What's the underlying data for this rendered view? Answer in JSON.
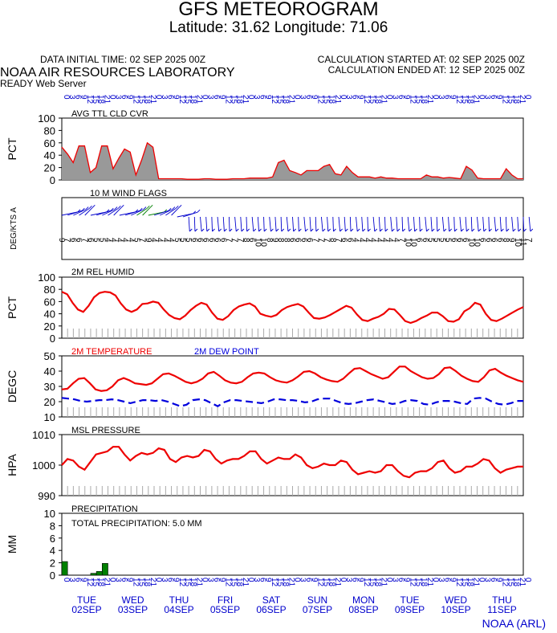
{
  "header": {
    "title": "GFS METEOROGRAM",
    "subtitle": "Latitude: 31.62 Longitude:  71.06",
    "initial_time": "DATA INITIAL TIME: 02 SEP 2025 00Z",
    "calc_started": "CALCULATION STARTED AT: 02 SEP 2025 00Z",
    "calc_ended": "CALCULATION ENDED AT: 12 SEP 2025 00Z",
    "lab": "NOAA AIR RESOURCES LABORATORY",
    "server": "READY Web Server"
  },
  "footer": "NOAA (ARL)",
  "colors": {
    "axis": "#000000",
    "series_red": "#ee0000",
    "dewpoint_blue": "#0000dd",
    "label_blue": "#0000cc",
    "fill_gray": "#999999",
    "precip_green": "#008000",
    "wind_blue": "#0000cc"
  },
  "time_axis": {
    "hours_label_top": "000306091215182124 hour tick labels (3-hourly, 0..240)",
    "hours": [
      "0",
      "3",
      "6",
      "9",
      "12",
      "15",
      "18",
      "21",
      "0",
      "3",
      "6",
      "9",
      "12",
      "15",
      "18",
      "21",
      "0",
      "3",
      "6",
      "9",
      "12",
      "15",
      "18",
      "21",
      "0",
      "3",
      "6",
      "9",
      "12",
      "15",
      "18",
      "21",
      "0",
      "3",
      "6",
      "9",
      "12",
      "15",
      "18",
      "21",
      "0",
      "3",
      "6",
      "9",
      "12",
      "15",
      "18",
      "21",
      "0",
      "3",
      "6",
      "9",
      "12",
      "15",
      "18",
      "21",
      "0",
      "3",
      "6",
      "9",
      "12",
      "15",
      "18",
      "21",
      "0",
      "3",
      "6",
      "9",
      "12",
      "15",
      "18",
      "21",
      "0",
      "3",
      "6",
      "9",
      "12",
      "15",
      "18",
      "21",
      "0"
    ],
    "days": [
      {
        "dow": "TUE",
        "date": "02SEP"
      },
      {
        "dow": "WED",
        "date": "03SEP"
      },
      {
        "dow": "THU",
        "date": "04SEP"
      },
      {
        "dow": "FRI",
        "date": "05SEP"
      },
      {
        "dow": "SAT",
        "date": "06SEP"
      },
      {
        "dow": "SUN",
        "date": "07SEP"
      },
      {
        "dow": "MON",
        "date": "08SEP"
      },
      {
        "dow": "TUE",
        "date": "09SEP"
      },
      {
        "dow": "WED",
        "date": "10SEP"
      },
      {
        "dow": "THU",
        "date": "11SEP"
      }
    ]
  },
  "chart_data": [
    {
      "type": "area",
      "name": "cloud",
      "title": "AVG TTL CLD CVR",
      "ylabel": "PCT",
      "ylim": [
        0,
        100
      ],
      "yticks": [
        "0",
        "20",
        "40",
        "60",
        "80",
        "100"
      ],
      "x_hours_step": 3,
      "values": [
        53,
        42,
        28,
        55,
        55,
        12,
        20,
        55,
        55,
        18,
        35,
        50,
        45,
        8,
        32,
        60,
        53,
        2,
        2,
        2,
        2,
        2,
        1,
        1,
        1,
        2,
        2,
        1,
        1,
        1,
        2,
        2,
        2,
        3,
        3,
        3,
        3,
        5,
        28,
        32,
        15,
        12,
        8,
        15,
        15,
        15,
        22,
        25,
        10,
        8,
        22,
        12,
        5,
        5,
        5,
        3,
        5,
        3,
        3,
        2,
        2,
        2,
        2,
        2,
        8,
        5,
        5,
        3,
        4,
        3,
        2,
        22,
        16,
        3,
        2,
        2,
        2,
        2,
        18,
        8,
        2,
        2
      ]
    },
    {
      "type": "wind_barbs",
      "name": "wind",
      "title": "10 M  WIND FLAGS",
      "ylabel": "DEG/KTS  A",
      "speeds": [
        "9",
        "7",
        "6",
        "6",
        "7",
        "6",
        "5",
        "5",
        "4",
        "4",
        "4",
        "4",
        "4",
        "5",
        "7",
        "9",
        "4",
        "4",
        "4",
        "4",
        "5",
        "5",
        "5",
        "6",
        "6",
        "6",
        "6",
        "6",
        "6",
        "7",
        "7",
        "7",
        "8",
        "6",
        "10",
        "10",
        "8",
        "9",
        "8",
        "8",
        "6",
        "6",
        "6",
        "6",
        "7",
        "7",
        "7",
        "8",
        "7",
        "6",
        "6",
        "4",
        "4",
        "4",
        "4",
        "4",
        "4",
        "4",
        "4",
        "7",
        "10",
        "10",
        "6",
        "6",
        "5",
        "5",
        "5",
        "5",
        "6",
        "6",
        "6",
        "10",
        "10",
        "6",
        "6",
        "6",
        "6",
        "8",
        "9",
        "10",
        "11",
        "7"
      ]
    },
    {
      "type": "line",
      "name": "rh",
      "title": "2M REL HUMID",
      "ylabel": "PCT",
      "ylim": [
        0,
        100
      ],
      "yticks": [
        "0",
        "20",
        "40",
        "60",
        "80",
        "100"
      ],
      "values": [
        76,
        72,
        58,
        47,
        43,
        53,
        67,
        74,
        76,
        75,
        70,
        57,
        47,
        43,
        47,
        56,
        57,
        60,
        58,
        47,
        38,
        33,
        31,
        37,
        46,
        53,
        58,
        55,
        42,
        32,
        30,
        36,
        46,
        52,
        55,
        57,
        52,
        40,
        37,
        35,
        38,
        46,
        51,
        54,
        56,
        52,
        42,
        33,
        32,
        34,
        38,
        43,
        48,
        53,
        50,
        39,
        30,
        28,
        32,
        35,
        40,
        48,
        47,
        38,
        28,
        25,
        28,
        33,
        37,
        42,
        42,
        36,
        28,
        27,
        31,
        44,
        49,
        58,
        55,
        40,
        30,
        28,
        32,
        37,
        42,
        47,
        51
      ]
    },
    {
      "type": "line",
      "name": "temp",
      "title": "2M TEMPERATURE",
      "ylabel": "DEGC",
      "ylim": [
        10,
        50
      ],
      "yticks": [
        "10",
        "20",
        "30",
        "40",
        "50"
      ],
      "series": [
        {
          "name": "2M TEMPERATURE",
          "values": [
            28,
            28.5,
            32,
            35,
            35.5,
            32,
            28,
            27,
            27.5,
            30,
            34,
            35.5,
            34,
            32,
            31.5,
            31,
            32,
            35,
            38,
            38.5,
            37,
            35,
            33,
            32,
            33,
            35,
            38.5,
            39.5,
            37,
            34,
            32.5,
            32,
            33,
            36,
            38.5,
            39,
            38.5,
            36,
            34,
            33,
            32.5,
            34,
            36.5,
            39.5,
            40,
            38.5,
            36,
            34.5,
            33.5,
            33,
            35,
            38.5,
            41.5,
            42,
            40,
            38,
            36.5,
            35,
            36,
            39.5,
            43,
            43,
            40,
            38,
            36,
            35,
            35.5,
            38,
            42,
            42.5,
            40,
            37,
            35,
            33.5,
            33,
            36,
            40.5,
            41.5,
            39,
            37,
            35.5,
            34,
            33
          ]
        },
        {
          "name": "2M  DEW POINT",
          "values": [
            22.5,
            22,
            21.5,
            20.5,
            20,
            20.5,
            21,
            21,
            21.5,
            21,
            20,
            19,
            20,
            21,
            21,
            20.5,
            21,
            20,
            18.5,
            17,
            18,
            21,
            21.5,
            21,
            19,
            17,
            19.5,
            21,
            21,
            20.5,
            20,
            19.5,
            19,
            20,
            21.5,
            21.5,
            21,
            21,
            20.5,
            19.5,
            20,
            21.5,
            22,
            22,
            20.5,
            19,
            18.5,
            19,
            20,
            21,
            21.5,
            20.5,
            19.5,
            18.5,
            19,
            20.5,
            21,
            20.5,
            18.5,
            18,
            19.5,
            20.5,
            20.5,
            20,
            19,
            18.5,
            22,
            22.5,
            22,
            20,
            18.5,
            18,
            19,
            20.5,
            20.5
          ]
        }
      ]
    },
    {
      "type": "line",
      "name": "pressure",
      "title": "MSL PRESSURE",
      "ylabel": "HPA",
      "ylim": [
        990,
        1010
      ],
      "yticks": [
        "990",
        "1000",
        "1010"
      ],
      "values": [
        1000,
        1002,
        1001.5,
        999.5,
        998.5,
        1001,
        1003.5,
        1004,
        1004.5,
        1006,
        1006,
        1003.5,
        1001.5,
        1003,
        1004,
        1003.5,
        1004,
        1005.5,
        1005,
        1002,
        1001,
        1002.5,
        1003,
        1002.5,
        1003,
        1005,
        1004.5,
        1002,
        1000.5,
        1001.5,
        1002,
        1002,
        1003,
        1004.5,
        1004.5,
        1002,
        1000.5,
        1001.5,
        1002.5,
        1002,
        1002,
        1003.5,
        1002.5,
        1000,
        999,
        999.5,
        1000.5,
        1000,
        1000,
        1001.5,
        1001,
        998.5,
        997,
        997.5,
        998,
        997.5,
        998,
        1000,
        1000,
        998,
        996.5,
        996,
        997.5,
        998,
        998,
        999,
        1001,
        1001.5,
        999,
        997.5,
        998,
        999.5,
        999.5,
        1000.5,
        1002,
        1001.5,
        999,
        997.5,
        998.5,
        999,
        999.5,
        999.5
      ]
    },
    {
      "type": "bar",
      "name": "precip",
      "title": "PRECIPITATION",
      "annotation": "TOTAL PRECIPITATION:   5.0 MM",
      "ylabel": "MM",
      "ylim": [
        0,
        10
      ],
      "yticks": [
        "0",
        "2",
        "4",
        "6",
        "8",
        "10"
      ],
      "values": [
        2.2,
        0,
        0,
        0,
        0,
        0.3,
        0.6,
        1.9,
        0,
        0,
        0,
        0,
        0,
        0,
        0,
        0,
        0,
        0,
        0,
        0,
        0,
        0,
        0,
        0,
        0,
        0,
        0,
        0,
        0,
        0,
        0,
        0,
        0,
        0,
        0,
        0,
        0,
        0,
        0,
        0,
        0,
        0,
        0,
        0,
        0,
        0,
        0,
        0,
        0,
        0,
        0,
        0,
        0,
        0,
        0,
        0,
        0,
        0,
        0,
        0,
        0,
        0,
        0,
        0,
        0,
        0,
        0,
        0,
        0,
        0,
        0,
        0,
        0,
        0,
        0,
        0,
        0,
        0,
        0,
        0,
        0
      ]
    }
  ]
}
